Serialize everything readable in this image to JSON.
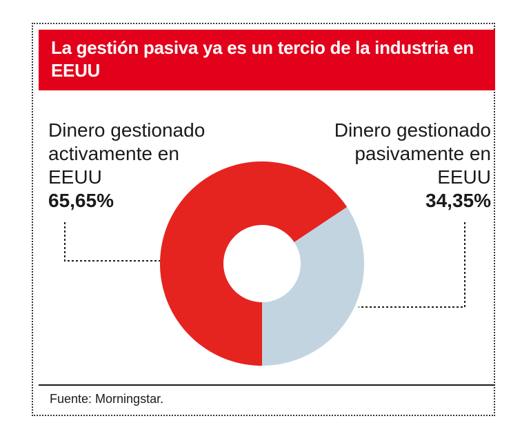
{
  "title": "La gestión pasiva ya es un tercio de la industria en EEUU",
  "source": "Fuente: Morningstar.",
  "colors": {
    "active": "#e52420",
    "passive": "#c2d4df",
    "title_bg": "#e2001a"
  },
  "chart_data": {
    "type": "pie",
    "donut": true,
    "title": "La gestión pasiva ya es un tercio de la industria en EEUU",
    "slices": [
      {
        "label_lines": [
          "Dinero gestionado",
          "activamente en",
          "EEUU"
        ],
        "value": 65.65,
        "value_label": "65,65%",
        "color": "#e52420"
      },
      {
        "label_lines": [
          "Dinero gestionado",
          "pasivamente en",
          "EEUU"
        ],
        "value": 34.35,
        "value_label": "34,35%",
        "color": "#c2d4df"
      }
    ]
  }
}
